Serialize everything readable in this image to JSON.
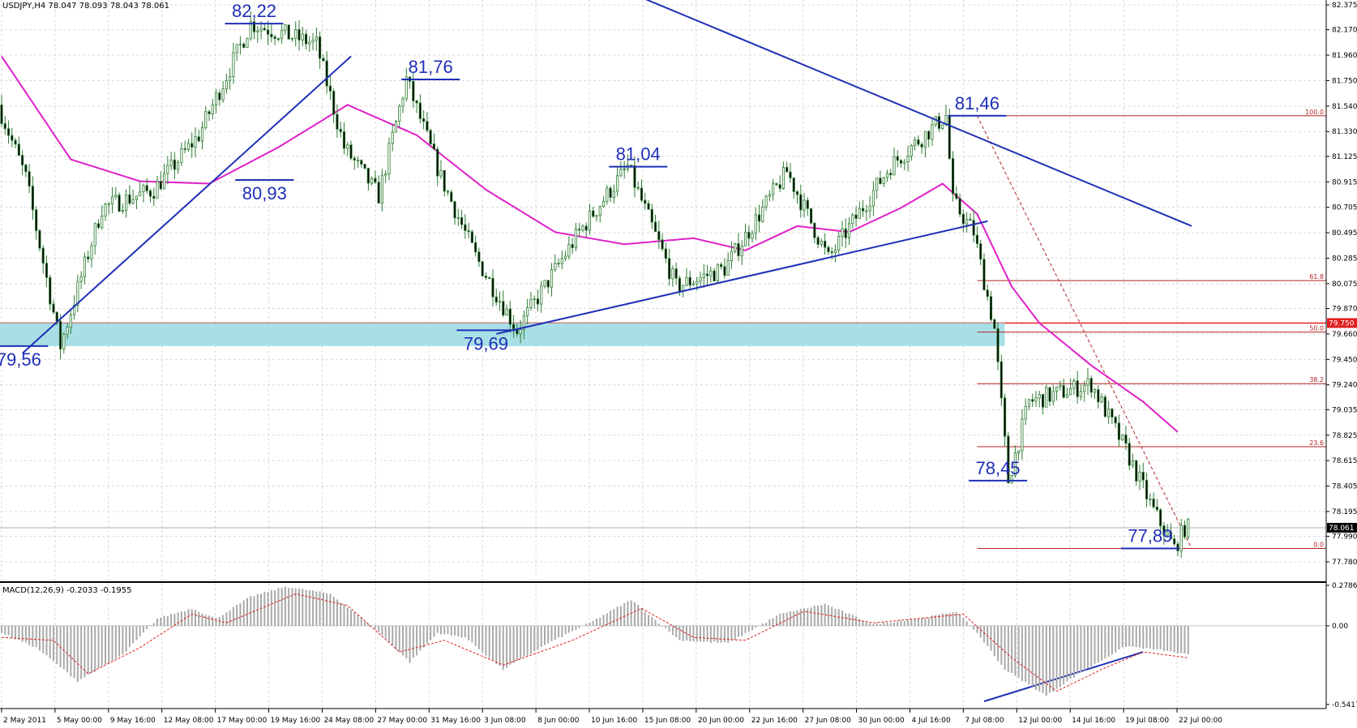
{
  "chart_data": {
    "type": "candlestick",
    "symbol_header": "USDJPY,H4  78.047 78.093 78.043 78.061",
    "current_price": "78.061",
    "colors": {
      "background": "#ffffff",
      "candle": "#2e7d32",
      "moving_average": "#e020c8",
      "trendline": "#1f2fb8",
      "fib_lines": "#b22222",
      "support_zone": "#a8dfe6",
      "macd_hist": "#a9a9a9",
      "macd_signal": "#e02020"
    },
    "price_axis": {
      "ticks": [
        "82.375",
        "82.170",
        "81.960",
        "81.750",
        "81.540",
        "81.330",
        "81.125",
        "80.915",
        "80.705",
        "80.495",
        "80.285",
        "80.075",
        "79.870",
        "79.660",
        "79.450",
        "79.240",
        "79.035",
        "78.825",
        "78.615",
        "78.405",
        "78.195",
        "77.990",
        "77.780"
      ],
      "ylim": [
        77.78,
        82.375
      ],
      "marked_level": "79.750"
    },
    "time_axis": {
      "labels": [
        "2 May 2011",
        "5 May 00:00",
        "9 May 16:00",
        "12 May 08:00",
        "17 May 00:00",
        "19 May 16:00",
        "24 May 08:00",
        "27 May 00:00",
        "31 May 16:00",
        "3 Jun 08:00",
        "8 Jun 00:00",
        "10 Jun 16:00",
        "15 Jun 08:00",
        "20 Jun 00:00",
        "22 Jun 16:00",
        "27 Jun 08:00",
        "30 Jun 00:00",
        "4 Jul 16:00",
        "7 Jul 08:00",
        "12 Jul 00:00",
        "14 Jul 16:00",
        "19 Jul 08:00",
        "22 Jul 00:00"
      ]
    },
    "key_price_path": [
      {
        "bar": 0,
        "price": 81.55
      },
      {
        "bar": 8,
        "price": 80.95
      },
      {
        "bar": 18,
        "price": 79.56
      },
      {
        "bar": 30,
        "price": 80.7
      },
      {
        "bar": 45,
        "price": 80.85
      },
      {
        "bar": 58,
        "price": 81.3
      },
      {
        "bar": 73,
        "price": 82.22
      },
      {
        "bar": 92,
        "price": 82.05
      },
      {
        "bar": 100,
        "price": 81.2
      },
      {
        "bar": 110,
        "price": 80.8
      },
      {
        "bar": 118,
        "price": 81.76
      },
      {
        "bar": 128,
        "price": 80.95
      },
      {
        "bar": 138,
        "price": 80.3
      },
      {
        "bar": 150,
        "price": 79.69
      },
      {
        "bar": 168,
        "price": 80.5
      },
      {
        "bar": 182,
        "price": 81.04
      },
      {
        "bar": 196,
        "price": 80.05
      },
      {
        "bar": 210,
        "price": 80.2
      },
      {
        "bar": 228,
        "price": 81.0
      },
      {
        "bar": 240,
        "price": 80.28
      },
      {
        "bar": 258,
        "price": 81.05
      },
      {
        "bar": 274,
        "price": 81.46
      },
      {
        "bar": 276,
        "price": 80.75
      },
      {
        "bar": 282,
        "price": 80.5
      },
      {
        "bar": 288,
        "price": 79.7
      },
      {
        "bar": 292,
        "price": 78.45
      },
      {
        "bar": 298,
        "price": 79.1
      },
      {
        "bar": 316,
        "price": 79.25
      },
      {
        "bar": 326,
        "price": 78.7
      },
      {
        "bar": 334,
        "price": 78.2
      },
      {
        "bar": 340,
        "price": 77.89
      },
      {
        "bar": 343,
        "price": 78.06
      }
    ],
    "moving_average_path": [
      {
        "bar": 0,
        "price": 81.95
      },
      {
        "bar": 20,
        "price": 81.1
      },
      {
        "bar": 40,
        "price": 80.92
      },
      {
        "bar": 60,
        "price": 80.9
      },
      {
        "bar": 80,
        "price": 81.2
      },
      {
        "bar": 100,
        "price": 81.55
      },
      {
        "bar": 120,
        "price": 81.3
      },
      {
        "bar": 140,
        "price": 80.85
      },
      {
        "bar": 160,
        "price": 80.5
      },
      {
        "bar": 180,
        "price": 80.4
      },
      {
        "bar": 200,
        "price": 80.45
      },
      {
        "bar": 215,
        "price": 80.35
      },
      {
        "bar": 230,
        "price": 80.55
      },
      {
        "bar": 245,
        "price": 80.5
      },
      {
        "bar": 260,
        "price": 80.7
      },
      {
        "bar": 272,
        "price": 80.9
      },
      {
        "bar": 282,
        "price": 80.65
      },
      {
        "bar": 292,
        "price": 80.05
      },
      {
        "bar": 300,
        "price": 79.75
      },
      {
        "bar": 315,
        "price": 79.4
      },
      {
        "bar": 330,
        "price": 79.1
      },
      {
        "bar": 340,
        "price": 78.85
      }
    ],
    "annotations": [
      {
        "text": "82,22",
        "bar": 73,
        "price": 82.22,
        "side": "above"
      },
      {
        "text": "80,93",
        "bar": 76,
        "price": 80.93,
        "side": "below"
      },
      {
        "text": "81,76",
        "bar": 124,
        "price": 81.76,
        "side": "above"
      },
      {
        "text": "81,04",
        "bar": 184,
        "price": 81.04,
        "side": "above"
      },
      {
        "text": "81,46",
        "bar": 282,
        "price": 81.46,
        "side": "above"
      },
      {
        "text": "79,56",
        "bar": 5,
        "price": 79.56,
        "side": "below"
      },
      {
        "text": "79,69",
        "bar": 140,
        "price": 79.69,
        "side": "below"
      },
      {
        "text": "78,45",
        "bar": 288,
        "price": 78.45,
        "side": "above"
      },
      {
        "text": "77,89",
        "bar": 332,
        "price": 77.89,
        "side": "above"
      }
    ],
    "fibonacci": {
      "high": 81.46,
      "low": 77.89,
      "levels": [
        {
          "label": "100.0",
          "price": 81.46
        },
        {
          "label": "61.8",
          "price": 80.1
        },
        {
          "label": "50.0",
          "price": 79.675
        },
        {
          "label": "38.2",
          "price": 79.25
        },
        {
          "label": "23.6",
          "price": 78.73
        },
        {
          "label": "0.0",
          "price": 77.89
        }
      ]
    },
    "support_zone": {
      "top": 79.75,
      "bottom": 79.56
    },
    "macd": {
      "label": "MACD(12,26,9) -0.2033 -0.1955",
      "ticks": [
        "0.2786",
        "0.00",
        "-0.5417"
      ],
      "ylim": [
        -0.5417,
        0.2786
      ],
      "hist_path": [
        {
          "bar": 0,
          "v": -0.05
        },
        {
          "bar": 10,
          "v": -0.15
        },
        {
          "bar": 22,
          "v": -0.38
        },
        {
          "bar": 35,
          "v": -0.2
        },
        {
          "bar": 45,
          "v": 0.05
        },
        {
          "bar": 55,
          "v": 0.12
        },
        {
          "bar": 62,
          "v": 0.05
        },
        {
          "bar": 72,
          "v": 0.2
        },
        {
          "bar": 82,
          "v": 0.27
        },
        {
          "bar": 95,
          "v": 0.22
        },
        {
          "bar": 108,
          "v": -0.02
        },
        {
          "bar": 118,
          "v": -0.25
        },
        {
          "bar": 126,
          "v": -0.05
        },
        {
          "bar": 134,
          "v": -0.08
        },
        {
          "bar": 145,
          "v": -0.3
        },
        {
          "bar": 158,
          "v": -0.12
        },
        {
          "bar": 170,
          "v": 0.02
        },
        {
          "bar": 182,
          "v": 0.18
        },
        {
          "bar": 196,
          "v": -0.1
        },
        {
          "bar": 210,
          "v": -0.12
        },
        {
          "bar": 225,
          "v": 0.08
        },
        {
          "bar": 238,
          "v": 0.15
        },
        {
          "bar": 252,
          "v": 0.01
        },
        {
          "bar": 268,
          "v": 0.06
        },
        {
          "bar": 276,
          "v": 0.1
        },
        {
          "bar": 282,
          "v": -0.05
        },
        {
          "bar": 290,
          "v": -0.3
        },
        {
          "bar": 302,
          "v": -0.48
        },
        {
          "bar": 312,
          "v": -0.32
        },
        {
          "bar": 325,
          "v": -0.14
        },
        {
          "bar": 336,
          "v": -0.17
        },
        {
          "bar": 343,
          "v": -0.2
        }
      ],
      "signal_path": [
        {
          "bar": 0,
          "v": -0.08
        },
        {
          "bar": 15,
          "v": -0.1
        },
        {
          "bar": 25,
          "v": -0.33
        },
        {
          "bar": 40,
          "v": -0.15
        },
        {
          "bar": 55,
          "v": 0.08
        },
        {
          "bar": 65,
          "v": 0.02
        },
        {
          "bar": 85,
          "v": 0.22
        },
        {
          "bar": 100,
          "v": 0.14
        },
        {
          "bar": 115,
          "v": -0.18
        },
        {
          "bar": 128,
          "v": -0.1
        },
        {
          "bar": 145,
          "v": -0.27
        },
        {
          "bar": 165,
          "v": -0.1
        },
        {
          "bar": 185,
          "v": 0.12
        },
        {
          "bar": 200,
          "v": -0.08
        },
        {
          "bar": 215,
          "v": -0.1
        },
        {
          "bar": 232,
          "v": 0.1
        },
        {
          "bar": 252,
          "v": 0.02
        },
        {
          "bar": 278,
          "v": 0.08
        },
        {
          "bar": 292,
          "v": -0.22
        },
        {
          "bar": 305,
          "v": -0.45
        },
        {
          "bar": 318,
          "v": -0.3
        },
        {
          "bar": 330,
          "v": -0.18
        },
        {
          "bar": 343,
          "v": -0.22
        }
      ]
    },
    "trendlines": [
      {
        "role": "rising-support-may",
        "from": {
          "bar": 6,
          "price": 79.5
        },
        "to": {
          "bar": 101,
          "price": 81.95
        }
      },
      {
        "role": "rising-support-june",
        "from": {
          "bar": 143,
          "price": 79.66
        },
        "to": {
          "bar": 285,
          "price": 80.59
        }
      },
      {
        "role": "falling-resistance",
        "from": {
          "bar": 177,
          "price": 82.53
        },
        "to": {
          "bar": 344,
          "price": 80.55
        }
      },
      {
        "role": "macd-divergence",
        "from": {
          "bar": 284,
          "price": -0.52
        },
        "to": {
          "bar": 330,
          "price": -0.18
        },
        "pane": "macd"
      }
    ]
  }
}
